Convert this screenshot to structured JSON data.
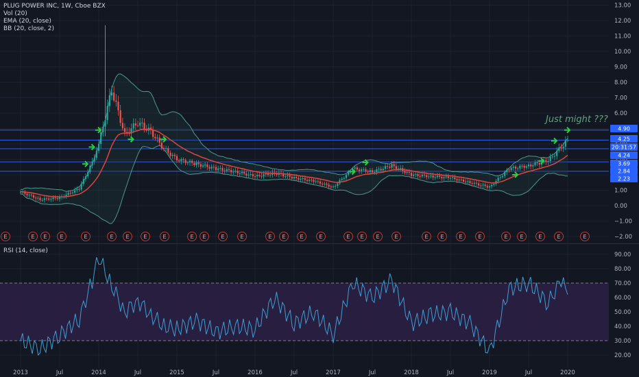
{
  "header": {
    "symbol_line": "PLUG POWER INC, 1W, Cboe BZX",
    "indicator_vol": "Vol (20)",
    "indicator_ema": "EMA (20, close)",
    "indicator_bb": "BB (20, close, 2)",
    "rsi_title": "RSI (14, close)"
  },
  "annotation": "Just might ???",
  "colors": {
    "background": "#131722",
    "grid": "#1e2230",
    "up": "#26a69a",
    "down": "#ef5350",
    "ema": "#e0443a",
    "bollinger": "#4a9a8e",
    "hlines": "#2962ff",
    "arrow": "#2ecc40",
    "rsi": "#3d9fd6",
    "rsi_band": "#2b1f43",
    "earnings": "#c0392b",
    "price_tag": "#2962ff"
  },
  "chart_data": [
    {
      "type": "candlestick",
      "title": "PLUG POWER INC, 1W, Cboe BZX",
      "y_ticks": [
        "13.00",
        "12.00",
        "11.00",
        "10.00",
        "9.00",
        "8.00",
        "7.00",
        "6.00",
        "5.00",
        "4.00",
        "3.00",
        "2.00",
        "1.00",
        "0.00",
        "−1.00",
        "−2.00"
      ],
      "ylim": [
        -2,
        13
      ],
      "x_ticks": [
        "2013",
        "Jul",
        "2014",
        "Jul",
        "2015",
        "Jul",
        "2016",
        "Jul",
        "2017",
        "Jul",
        "2018",
        "Jul",
        "2019",
        "Jul",
        "2020"
      ],
      "horizontal_levels": [
        4.9,
        4.25,
        3.69,
        2.84,
        2.23
      ],
      "price_labels": [
        "4.90",
        "4.25",
        "20:31:57",
        "4.24",
        "3.69",
        "2.84",
        "2.23"
      ],
      "earnings_marker": "E",
      "earnings_count": 30,
      "series": [
        {
          "name": "close",
          "x": [
            "2013-01",
            "2013-04",
            "2013-07",
            "2013-10",
            "2013-12",
            "2014-01",
            "2014-03",
            "2014-05",
            "2014-07",
            "2014-09",
            "2014-11",
            "2015-01",
            "2015-04",
            "2015-07",
            "2015-10",
            "2016-01",
            "2016-04",
            "2016-07",
            "2016-10",
            "2017-01",
            "2017-04",
            "2017-07",
            "2017-10",
            "2018-01",
            "2018-04",
            "2018-07",
            "2018-10",
            "2019-01",
            "2019-04",
            "2019-07",
            "2019-10",
            "2019-12",
            "2020-01"
          ],
          "values": [
            0.9,
            0.4,
            0.5,
            1.1,
            2.8,
            4.0,
            7.5,
            4.6,
            5.4,
            4.8,
            3.7,
            3.0,
            2.7,
            2.4,
            2.2,
            1.9,
            2.1,
            1.8,
            1.6,
            1.2,
            2.4,
            2.2,
            2.6,
            2.0,
            1.9,
            1.8,
            1.5,
            1.2,
            2.4,
            2.6,
            2.9,
            3.8,
            4.25
          ]
        },
        {
          "name": "RSI",
          "ylim": [
            10,
            95
          ],
          "y_ticks": [
            "90.00",
            "80.00",
            "70.00",
            "60.00",
            "50.00",
            "40.00",
            "30.00",
            "20.00"
          ],
          "bands": [
            30,
            70
          ],
          "x": [
            "2013-01",
            "2013-04",
            "2013-07",
            "2013-10",
            "2013-12",
            "2014-01",
            "2014-03",
            "2014-05",
            "2014-07",
            "2014-09",
            "2014-11",
            "2015-01",
            "2015-04",
            "2015-07",
            "2015-10",
            "2016-01",
            "2016-04",
            "2016-07",
            "2016-10",
            "2017-01",
            "2017-04",
            "2017-07",
            "2017-10",
            "2018-01",
            "2018-04",
            "2018-07",
            "2018-10",
            "2019-01",
            "2019-04",
            "2019-07",
            "2019-10",
            "2019-12",
            "2020-01"
          ],
          "values": [
            30,
            24,
            34,
            45,
            72,
            88,
            68,
            50,
            58,
            48,
            40,
            38,
            44,
            36,
            40,
            38,
            60,
            42,
            50,
            34,
            70,
            60,
            72,
            42,
            48,
            50,
            42,
            22,
            66,
            70,
            56,
            72,
            62
          ]
        }
      ]
    }
  ]
}
